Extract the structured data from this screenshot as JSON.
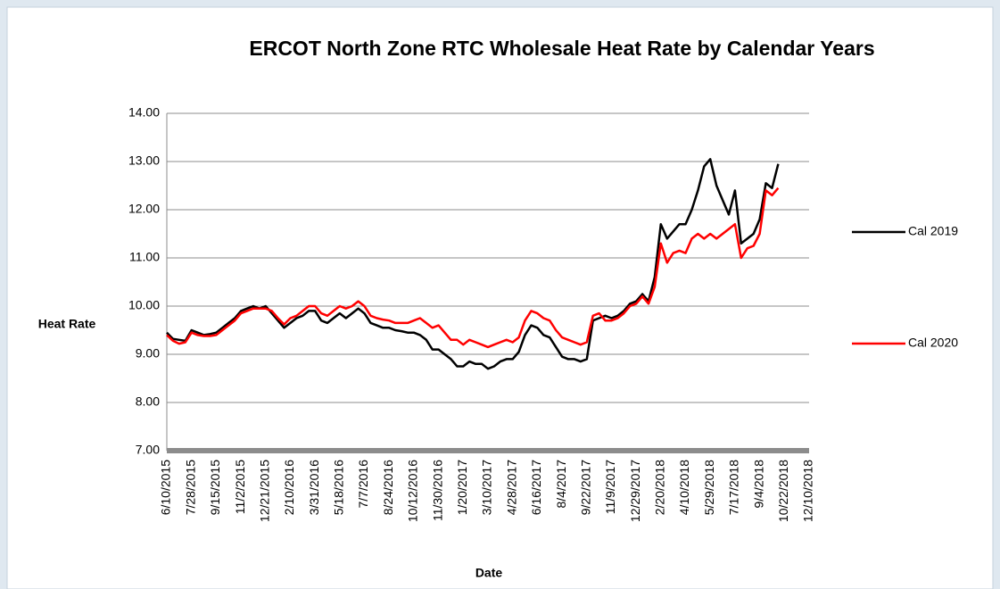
{
  "chart_data": {
    "type": "line",
    "title": "ERCOT North Zone RTC Wholesale Heat Rate by Calendar Years",
    "x_label": "Date",
    "y_label": "Heat Rate",
    "legend": "right",
    "grid": true,
    "ylim": [
      7,
      14
    ],
    "yticks": [
      {
        "value": 7,
        "label": "7.00"
      },
      {
        "value": 8,
        "label": "8.00"
      },
      {
        "value": 9,
        "label": "9.00"
      },
      {
        "value": 10,
        "label": "10.00"
      },
      {
        "value": 11,
        "label": "11.00"
      },
      {
        "value": 12,
        "label": "12.00"
      },
      {
        "value": 13,
        "label": "13.00"
      },
      {
        "value": 14,
        "label": "14.00"
      }
    ],
    "categories": [
      "6/10/2015",
      null,
      null,
      null,
      "7/28/2015",
      null,
      null,
      null,
      "9/15/2015",
      null,
      null,
      null,
      "11/2/2015",
      null,
      null,
      null,
      "12/21/2015",
      null,
      null,
      null,
      "2/10/2016",
      null,
      null,
      null,
      "3/31/2016",
      null,
      null,
      null,
      "5/18/2016",
      null,
      null,
      null,
      "7/7/2016",
      null,
      null,
      null,
      "8/24/2016",
      null,
      null,
      null,
      "10/12/2016",
      null,
      null,
      null,
      "11/30/2016",
      null,
      null,
      null,
      "1/20/2017",
      null,
      null,
      null,
      "3/10/2017",
      null,
      null,
      null,
      "4/28/2017",
      null,
      null,
      null,
      "6/16/2017",
      null,
      null,
      null,
      "8/4/2017",
      null,
      null,
      null,
      "9/22/2017",
      null,
      null,
      null,
      "11/9/2017",
      null,
      null,
      null,
      "12/29/2017",
      null,
      null,
      null,
      "2/20/2018",
      null,
      null,
      null,
      "4/10/2018",
      null,
      null,
      null,
      "5/29/2018",
      null,
      null,
      null,
      "7/17/2018",
      null,
      null,
      null,
      "9/4/2018",
      null,
      null,
      null,
      "10/22/2018",
      null,
      null,
      null,
      "12/10/2018"
    ],
    "series": [
      {
        "name": "Cal 2019",
        "color": "#000000",
        "values": [
          9.45,
          9.32,
          9.3,
          9.28,
          9.5,
          9.45,
          9.4,
          9.42,
          9.45,
          9.55,
          9.65,
          9.75,
          9.9,
          9.95,
          10.0,
          9.95,
          10.0,
          9.85,
          9.7,
          9.55,
          9.65,
          9.75,
          9.8,
          9.9,
          9.9,
          9.7,
          9.65,
          9.75,
          9.85,
          9.75,
          9.85,
          9.95,
          9.85,
          9.65,
          9.6,
          9.55,
          9.55,
          9.5,
          9.48,
          9.45,
          9.45,
          9.4,
          9.3,
          9.1,
          9.1,
          9.0,
          8.9,
          8.75,
          8.75,
          8.85,
          8.8,
          8.8,
          8.7,
          8.75,
          8.85,
          8.9,
          8.9,
          9.05,
          9.4,
          9.6,
          9.55,
          9.4,
          9.35,
          9.15,
          8.95,
          8.9,
          8.9,
          8.85,
          8.9,
          9.7,
          9.75,
          9.8,
          9.75,
          9.8,
          9.9,
          10.05,
          10.1,
          10.25,
          10.1,
          10.6,
          11.7,
          11.4,
          11.55,
          11.7,
          11.7,
          12.0,
          12.4,
          12.9,
          13.05,
          12.5,
          12.2,
          11.9,
          12.4,
          11.3,
          11.4,
          11.5,
          11.8,
          12.55,
          12.45,
          12.95,
          null,
          null,
          null,
          null,
          null
        ]
      },
      {
        "name": "Cal 2020",
        "color": "#ff0000",
        "values": [
          9.4,
          9.28,
          9.22,
          9.25,
          9.45,
          9.4,
          9.38,
          9.38,
          9.4,
          9.5,
          9.6,
          9.7,
          9.85,
          9.9,
          9.95,
          9.95,
          9.95,
          9.9,
          9.75,
          9.62,
          9.75,
          9.8,
          9.9,
          10.0,
          10.0,
          9.85,
          9.8,
          9.9,
          10.0,
          9.95,
          10.0,
          10.1,
          10.0,
          9.8,
          9.75,
          9.72,
          9.7,
          9.65,
          9.65,
          9.65,
          9.7,
          9.75,
          9.65,
          9.55,
          9.6,
          9.45,
          9.3,
          9.3,
          9.2,
          9.3,
          9.25,
          9.2,
          9.15,
          9.2,
          9.25,
          9.3,
          9.25,
          9.35,
          9.7,
          9.9,
          9.85,
          9.75,
          9.7,
          9.5,
          9.35,
          9.3,
          9.25,
          9.2,
          9.25,
          9.8,
          9.85,
          9.7,
          9.7,
          9.75,
          9.85,
          10.0,
          10.05,
          10.2,
          10.05,
          10.4,
          11.3,
          10.9,
          11.1,
          11.15,
          11.1,
          11.4,
          11.5,
          11.4,
          11.5,
          11.4,
          11.5,
          11.6,
          11.7,
          11.0,
          11.2,
          11.25,
          11.5,
          12.4,
          12.3,
          12.45,
          null,
          null,
          null,
          null,
          null
        ]
      }
    ]
  }
}
